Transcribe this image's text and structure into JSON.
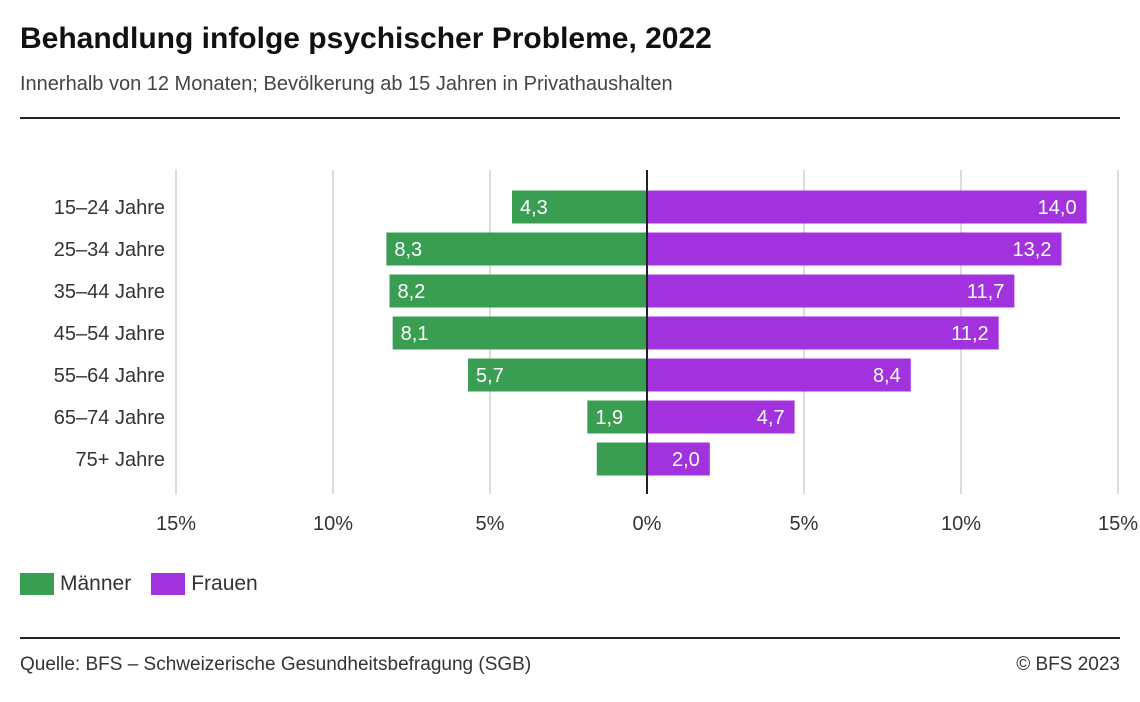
{
  "title": "Behandlung infolge psychischer Probleme, 2022",
  "subtitle": "Innerhalb von 12 Monaten; Bevölkerung ab 15 Jahren in Privathaushalten",
  "source": "Quelle: BFS – Schweizerische Gesundheitsbefragung (SGB)",
  "copyright": "© BFS 2023",
  "colors": {
    "maenner": "#3a9e52",
    "frauen": "#a232dd"
  },
  "chart_data": {
    "type": "bar",
    "orientation": "horizontal-diverging",
    "categories": [
      "15–24 Jahre",
      "25–34 Jahre",
      "35–44 Jahre",
      "45–54 Jahre",
      "55–64 Jahre",
      "65–74 Jahre",
      "75+ Jahre"
    ],
    "series": [
      {
        "name": "Männer",
        "values": [
          4.3,
          8.3,
          8.2,
          8.1,
          5.7,
          1.9,
          1.6
        ],
        "labels": [
          "4,3",
          "8,3",
          "8,2",
          "8,1",
          "5,7",
          "1,9",
          ""
        ]
      },
      {
        "name": "Frauen",
        "values": [
          14.0,
          13.2,
          11.7,
          11.2,
          8.4,
          4.7,
          2.0
        ],
        "labels": [
          "14,0",
          "13,2",
          "11,7",
          "11,2",
          "8,4",
          "4,7",
          "2,0"
        ]
      }
    ],
    "xlim": [
      -15,
      15
    ],
    "ticks": [
      -15,
      -10,
      -5,
      0,
      5,
      10,
      15
    ],
    "tick_labels": [
      "15%",
      "10%",
      "5%",
      "0%",
      "5%",
      "10%",
      "15%"
    ],
    "grid": true,
    "legend_placement": "bottom-left"
  }
}
